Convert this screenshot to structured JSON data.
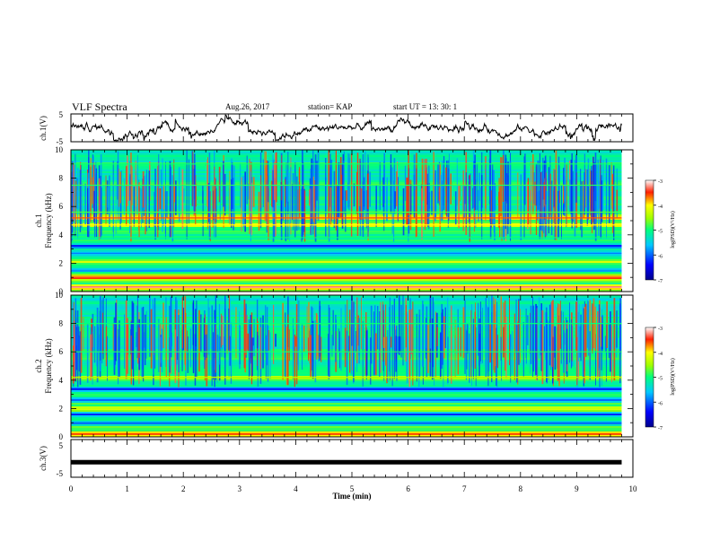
{
  "header": {
    "title": "VLF Spectra",
    "date": "Aug.26, 2017",
    "station": "station= KAP",
    "start": "start  UT =   13: 30: 1"
  },
  "chart_data": [
    {
      "type": "line",
      "name": "ch1-waveform",
      "ylabel": "ch.1(V)",
      "ylim": [
        -5,
        5
      ],
      "yticks": [
        "5",
        "-5"
      ],
      "xlim": [
        0,
        10
      ],
      "description_values": "noisy waveform, mostly between -4 and 4 V, sampled continuously over 0 to 9.8 min",
      "color": "#000000"
    },
    {
      "type": "heatmap",
      "name": "ch1-spectrogram",
      "ylabel": "ch.1\nFrequency (kHz)",
      "ylabel_lines": [
        "ch.1",
        "Frequency (kHz)"
      ],
      "ylim": [
        0,
        10
      ],
      "yticks": [
        "0",
        "2",
        "4",
        "6",
        "8",
        "10"
      ],
      "xlim": [
        0,
        10
      ],
      "data_end_min": 9.8,
      "colorbar": {
        "label": "log(PSD)(V²/Hz)",
        "range": [
          -7,
          -3
        ],
        "ticks": [
          "-3",
          "-4",
          "-5",
          "-6",
          "-7"
        ]
      },
      "bands": [
        {
          "freq_khz": 0.3,
          "level": -3.2
        },
        {
          "freq_khz": 1.0,
          "level": -3.4
        },
        {
          "freq_khz": 1.5,
          "level": -5.8
        },
        {
          "freq_khz": 2.1,
          "level": -4.2
        },
        {
          "freq_khz": 2.7,
          "level": -5.9
        },
        {
          "freq_khz": 3.2,
          "level": -6.3
        },
        {
          "freq_khz": 3.8,
          "level": -5.0
        },
        {
          "freq_khz": 4.7,
          "level": -4.0
        },
        {
          "freq_khz": 5.2,
          "level": -3.6
        },
        {
          "freq_khz": 5.6,
          "level": -4.8
        },
        {
          "freq_khz": 7.5,
          "level": -4.9
        },
        {
          "freq_khz": 9.0,
          "level": -5.0
        }
      ]
    },
    {
      "type": "heatmap",
      "name": "ch2-spectrogram",
      "ylabel": "ch.2\nFrequency (kHz)",
      "ylabel_lines": [
        "ch.2",
        "Frequency (kHz)"
      ],
      "ylim": [
        0,
        10
      ],
      "yticks": [
        "0",
        "2",
        "4",
        "6",
        "8",
        "10"
      ],
      "xlim": [
        0,
        10
      ],
      "data_end_min": 9.8,
      "colorbar": {
        "label": "log(PSD)(V²/Hz)",
        "range": [
          -7,
          -3
        ],
        "ticks": [
          "-3",
          "-4",
          "-5",
          "-6",
          "-7"
        ]
      },
      "bands": [
        {
          "freq_khz": 0.2,
          "level": -3.5
        },
        {
          "freq_khz": 1.0,
          "level": -6.0
        },
        {
          "freq_khz": 1.6,
          "level": -6.2
        },
        {
          "freq_khz": 2.0,
          "level": -4.3
        },
        {
          "freq_khz": 2.6,
          "level": -6.0
        },
        {
          "freq_khz": 3.4,
          "level": -6.3
        },
        {
          "freq_khz": 4.2,
          "level": -4.5
        },
        {
          "freq_khz": 6.0,
          "level": -4.9
        },
        {
          "freq_khz": 8.0,
          "level": -5.0
        }
      ]
    },
    {
      "type": "line",
      "name": "ch3-waveform",
      "ylabel": "ch.3(V)",
      "ylim": [
        -5,
        5
      ],
      "yticks": [
        "5",
        "-5"
      ],
      "xlim": [
        0,
        10
      ],
      "xlabel": "Time  (min)",
      "xticks": [
        "0",
        "1",
        "2",
        "3",
        "4",
        "5",
        "6",
        "7",
        "8",
        "9",
        "10"
      ],
      "constant_value": -1,
      "color": "#000000"
    }
  ]
}
